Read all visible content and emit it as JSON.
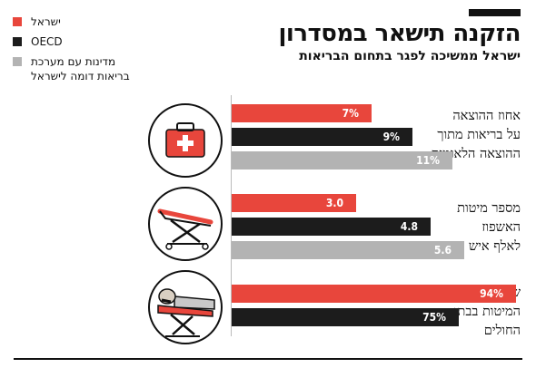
{
  "header": {
    "title": "הזקנה תישאר במסדרון",
    "subtitle": "ישראל ממשיכה לפגר בתחום הבריאות"
  },
  "legend": [
    {
      "label": "ישראל",
      "color": "#e8463c"
    },
    {
      "label": "OECD",
      "color": "#1c1c1c"
    },
    {
      "label": "מדינות עם מערכת\nבריאות דומה לישראל",
      "color": "#b3b3b3"
    }
  ],
  "chart_data": {
    "type": "bar",
    "orientation": "horizontal",
    "groups": [
      {
        "label": "אחוז ההוצאה\nעל בריאות מתוך\nההוצאה הלאומית",
        "icon": "first-aid-kit-icon",
        "scale_max": 14.5,
        "bars": [
          {
            "series": "ישראל",
            "value": 7,
            "label": "7%",
            "color": "#e8463c"
          },
          {
            "series": "OECD",
            "value": 9,
            "label": "9%",
            "color": "#1c1c1c"
          },
          {
            "series": "מדינות עם מערכת בריאות דומה לישראל",
            "value": 11,
            "label": "11%",
            "color": "#b3b3b3"
          }
        ]
      },
      {
        "label": "מספר מיטות\nהאשפוז\nלאלף איש",
        "icon": "stretcher-icon",
        "scale_max": 7.0,
        "bars": [
          {
            "series": "ישראל",
            "value": 3.0,
            "label": "3.0",
            "color": "#e8463c"
          },
          {
            "series": "OECD",
            "value": 4.8,
            "label": "4.8",
            "color": "#1c1c1c"
          },
          {
            "series": "מדינות עם מערכת בריאות דומה לישראל",
            "value": 5.6,
            "label": "5.6",
            "color": "#b3b3b3"
          }
        ]
      },
      {
        "label": "שיעור תפוסת\nהמיטות בבתי\nהחולים",
        "icon": "patient-bed-icon",
        "scale_max": 96,
        "bars": [
          {
            "series": "ישראל",
            "value": 94,
            "label": "94%",
            "color": "#e8463c"
          },
          {
            "series": "OECD",
            "value": 75,
            "label": "75%",
            "color": "#1c1c1c"
          }
        ]
      }
    ]
  }
}
